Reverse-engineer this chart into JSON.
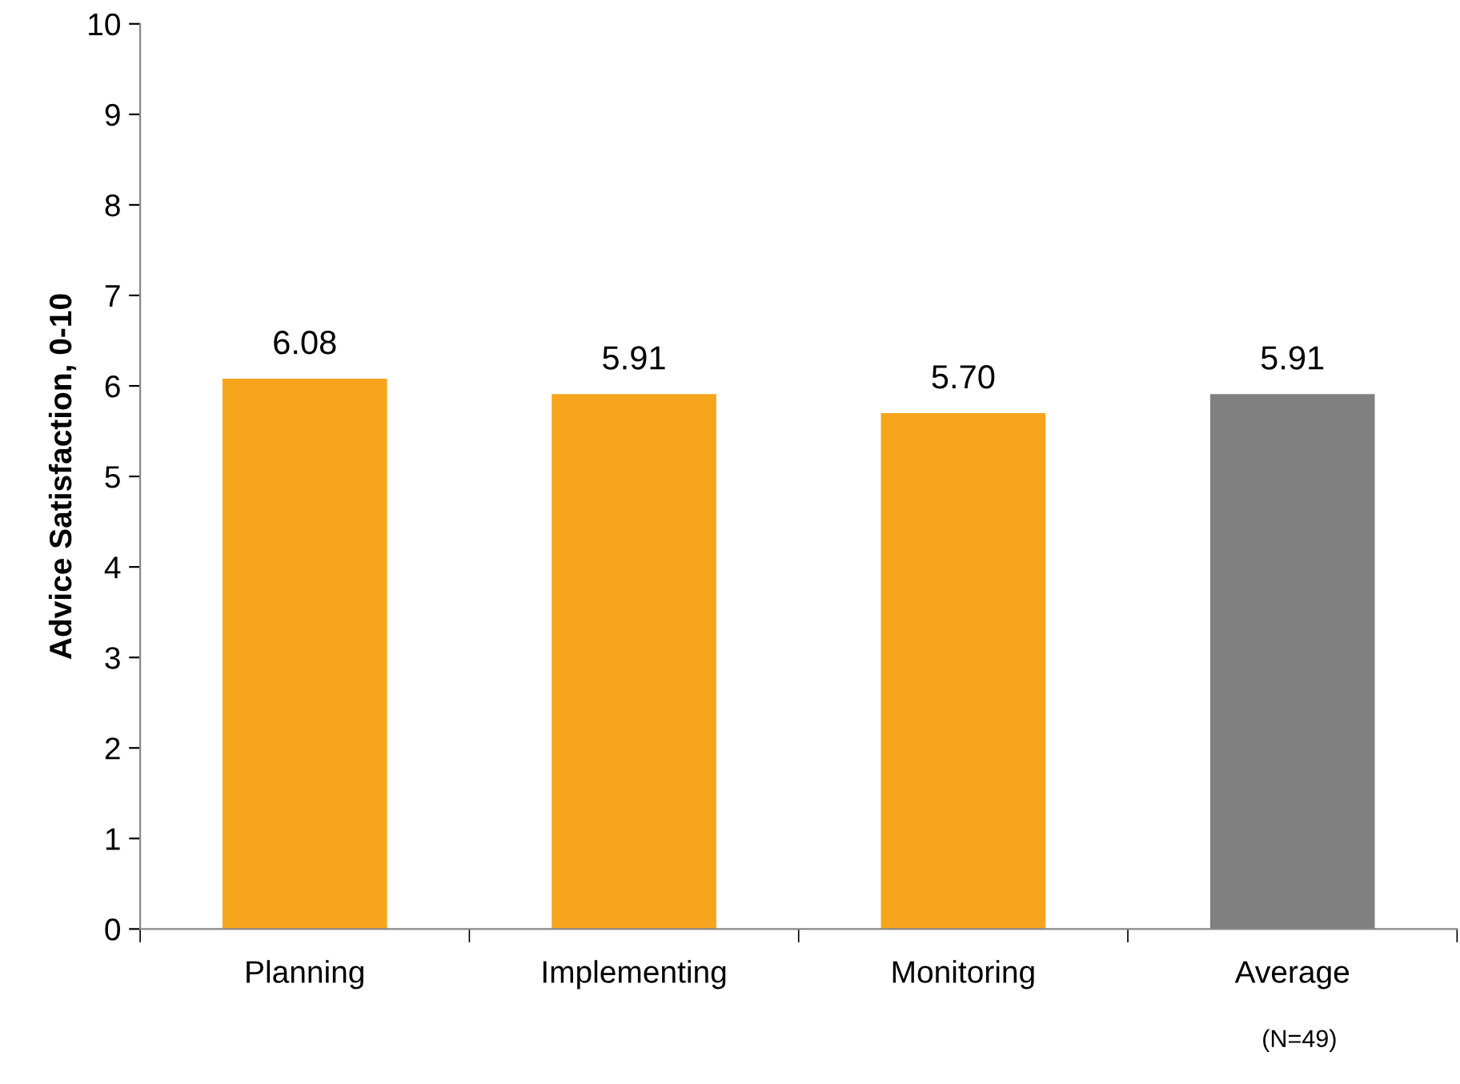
{
  "chart_data": {
    "type": "bar",
    "categories": [
      "Planning",
      "Implementing",
      "Monitoring",
      "Average"
    ],
    "values": [
      6.08,
      5.91,
      5.7,
      5.91
    ],
    "value_labels": [
      "6.08",
      "5.91",
      "5.70",
      "5.91"
    ],
    "colors": [
      "#f7a51d",
      "#f7a51d",
      "#f7a51d",
      "#808080"
    ],
    "ylabel": "Advice Satisfaction, 0-10",
    "ylim": [
      0,
      10
    ],
    "yticks": [
      0,
      1,
      2,
      3,
      4,
      5,
      6,
      7,
      8,
      9,
      10
    ],
    "grid": false,
    "annotations": [
      "(N=49)"
    ]
  }
}
